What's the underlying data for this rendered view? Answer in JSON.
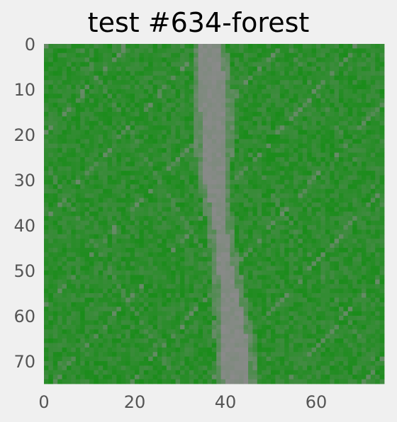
{
  "chart_data": {
    "type": "heatmap",
    "title": "test #634-forest",
    "xlabel": "",
    "ylabel": "",
    "rows": 75,
    "cols": 75,
    "xlim": [
      0,
      75
    ],
    "ylim": [
      75,
      0
    ],
    "x_ticks": [
      0,
      20,
      40,
      60
    ],
    "y_ticks": [
      0,
      10,
      20,
      30,
      40,
      50,
      60,
      70
    ],
    "grid": false,
    "colors": {
      "vegetation": "#1a8c1a",
      "vegetation_light": "#2f9a2f",
      "path": "#8a8a8a",
      "background": "#f0f0f0",
      "tick_text": "#555555"
    },
    "path_center_by_row": [
      {
        "row": 0,
        "col": 36
      },
      {
        "row": 15,
        "col": 37
      },
      {
        "row": 30,
        "col": 37
      },
      {
        "row": 45,
        "col": 39
      },
      {
        "row": 60,
        "col": 41
      },
      {
        "row": 74,
        "col": 42
      }
    ]
  }
}
